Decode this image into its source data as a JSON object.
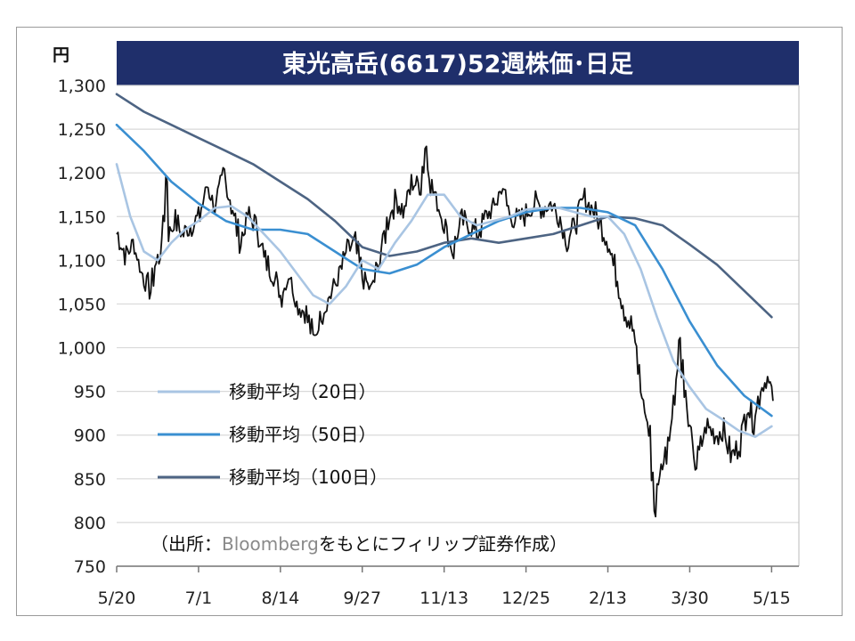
{
  "chart_data": {
    "type": "line",
    "title": "東光高岳(6617)52週株価･日足",
    "unit_label": "円",
    "ylim": [
      750,
      1300
    ],
    "yticks": [
      "1,300",
      "1,250",
      "1,200",
      "1,150",
      "1,100",
      "1,050",
      "1,000",
      "950",
      "900",
      "850",
      "800",
      "750"
    ],
    "ytick_values": [
      1300,
      1250,
      1200,
      1150,
      1100,
      1050,
      1000,
      950,
      900,
      850,
      800,
      750
    ],
    "xlim": [
      0,
      250
    ],
    "xticks": [
      "5/20",
      "7/1",
      "8/14",
      "9/27",
      "11/13",
      "12/25",
      "2/13",
      "3/30",
      "5/15"
    ],
    "xtick_positions": [
      0,
      30,
      60,
      90,
      120,
      150,
      180,
      210,
      240
    ],
    "grid": true,
    "legend_placement": "center-left",
    "source_note_prefix": "（出所：",
    "source_note_brand": "Bloomberg",
    "source_note_suffix": "をもとにフィリップ証券作成）",
    "colors": {
      "price": "#111111",
      "ma20": "#a9c5e3",
      "ma50": "#3a8fd1",
      "ma100": "#4d6483",
      "title_bg": "#1f2f6b",
      "grid": "#d9d9d9"
    },
    "price_anchors": [
      {
        "x": 0,
        "y": 1130
      },
      {
        "x": 3,
        "y": 1105
      },
      {
        "x": 6,
        "y": 1120
      },
      {
        "x": 9,
        "y": 1085
      },
      {
        "x": 12,
        "y": 1065
      },
      {
        "x": 14,
        "y": 1095
      },
      {
        "x": 16,
        "y": 1110
      },
      {
        "x": 18,
        "y": 1195
      },
      {
        "x": 19,
        "y": 1130
      },
      {
        "x": 21,
        "y": 1145
      },
      {
        "x": 24,
        "y": 1130
      },
      {
        "x": 27,
        "y": 1140
      },
      {
        "x": 30,
        "y": 1150
      },
      {
        "x": 33,
        "y": 1185
      },
      {
        "x": 36,
        "y": 1160
      },
      {
        "x": 39,
        "y": 1200
      },
      {
        "x": 42,
        "y": 1160
      },
      {
        "x": 45,
        "y": 1120
      },
      {
        "x": 48,
        "y": 1150
      },
      {
        "x": 51,
        "y": 1140
      },
      {
        "x": 54,
        "y": 1100
      },
      {
        "x": 57,
        "y": 1085
      },
      {
        "x": 60,
        "y": 1060
      },
      {
        "x": 63,
        "y": 1085
      },
      {
        "x": 66,
        "y": 1050
      },
      {
        "x": 69,
        "y": 1040
      },
      {
        "x": 72,
        "y": 1010
      },
      {
        "x": 75,
        "y": 1040
      },
      {
        "x": 78,
        "y": 1060
      },
      {
        "x": 81,
        "y": 1080
      },
      {
        "x": 84,
        "y": 1110
      },
      {
        "x": 87,
        "y": 1120
      },
      {
        "x": 90,
        "y": 1080
      },
      {
        "x": 93,
        "y": 1065
      },
      {
        "x": 96,
        "y": 1100
      },
      {
        "x": 99,
        "y": 1145
      },
      {
        "x": 102,
        "y": 1170
      },
      {
        "x": 105,
        "y": 1155
      },
      {
        "x": 108,
        "y": 1190
      },
      {
        "x": 111,
        "y": 1185
      },
      {
        "x": 113,
        "y": 1230
      },
      {
        "x": 115,
        "y": 1185
      },
      {
        "x": 118,
        "y": 1160
      },
      {
        "x": 120,
        "y": 1140
      },
      {
        "x": 123,
        "y": 1110
      },
      {
        "x": 126,
        "y": 1145
      },
      {
        "x": 129,
        "y": 1140
      },
      {
        "x": 132,
        "y": 1130
      },
      {
        "x": 135,
        "y": 1150
      },
      {
        "x": 138,
        "y": 1160
      },
      {
        "x": 141,
        "y": 1185
      },
      {
        "x": 144,
        "y": 1150
      },
      {
        "x": 147,
        "y": 1145
      },
      {
        "x": 150,
        "y": 1155
      },
      {
        "x": 153,
        "y": 1165
      },
      {
        "x": 156,
        "y": 1160
      },
      {
        "x": 159,
        "y": 1165
      },
      {
        "x": 162,
        "y": 1150
      },
      {
        "x": 165,
        "y": 1120
      },
      {
        "x": 168,
        "y": 1145
      },
      {
        "x": 171,
        "y": 1170
      },
      {
        "x": 174,
        "y": 1160
      },
      {
        "x": 177,
        "y": 1140
      },
      {
        "x": 180,
        "y": 1120
      },
      {
        "x": 183,
        "y": 1080
      },
      {
        "x": 186,
        "y": 1040
      },
      {
        "x": 189,
        "y": 1020
      },
      {
        "x": 192,
        "y": 950
      },
      {
        "x": 195,
        "y": 900
      },
      {
        "x": 197,
        "y": 815
      },
      {
        "x": 199,
        "y": 860
      },
      {
        "x": 201,
        "y": 880
      },
      {
        "x": 204,
        "y": 940
      },
      {
        "x": 206,
        "y": 1010
      },
      {
        "x": 208,
        "y": 945
      },
      {
        "x": 210,
        "y": 900
      },
      {
        "x": 212,
        "y": 865
      },
      {
        "x": 214,
        "y": 890
      },
      {
        "x": 216,
        "y": 910
      },
      {
        "x": 219,
        "y": 900
      },
      {
        "x": 222,
        "y": 905
      },
      {
        "x": 225,
        "y": 875
      },
      {
        "x": 228,
        "y": 890
      },
      {
        "x": 231,
        "y": 935
      },
      {
        "x": 233,
        "y": 915
      },
      {
        "x": 236,
        "y": 955
      },
      {
        "x": 238,
        "y": 965
      },
      {
        "x": 240,
        "y": 945
      }
    ],
    "series": [
      {
        "name": "移動平均（20日）",
        "key": "ma20",
        "x": [
          0,
          5,
          10,
          15,
          20,
          25,
          30,
          36,
          42,
          48,
          54,
          60,
          66,
          72,
          78,
          84,
          90,
          96,
          102,
          108,
          114,
          120,
          126,
          132,
          138,
          144,
          150,
          156,
          162,
          168,
          174,
          180,
          186,
          192,
          198,
          204,
          210,
          216,
          222,
          228,
          234,
          240
        ],
        "y": [
          1210,
          1150,
          1110,
          1100,
          1120,
          1135,
          1145,
          1160,
          1162,
          1150,
          1130,
          1110,
          1085,
          1060,
          1050,
          1070,
          1100,
          1090,
          1120,
          1145,
          1175,
          1175,
          1150,
          1140,
          1145,
          1150,
          1158,
          1160,
          1160,
          1155,
          1150,
          1150,
          1130,
          1090,
          1035,
          985,
          955,
          930,
          918,
          905,
          898,
          910
        ]
      },
      {
        "name": "移動平均（50日）",
        "key": "ma50",
        "x": [
          0,
          10,
          20,
          30,
          40,
          50,
          60,
          70,
          80,
          90,
          100,
          110,
          120,
          130,
          140,
          150,
          160,
          170,
          180,
          190,
          200,
          210,
          220,
          230,
          240
        ],
        "y": [
          1255,
          1225,
          1190,
          1165,
          1145,
          1135,
          1135,
          1130,
          1110,
          1090,
          1085,
          1095,
          1115,
          1130,
          1145,
          1155,
          1160,
          1160,
          1155,
          1140,
          1090,
          1030,
          980,
          945,
          922
        ]
      },
      {
        "name": "移動平均（100日）",
        "key": "ma100",
        "x": [
          0,
          10,
          20,
          30,
          40,
          50,
          60,
          70,
          80,
          90,
          100,
          110,
          120,
          130,
          140,
          150,
          160,
          170,
          180,
          190,
          200,
          210,
          220,
          230,
          240
        ],
        "y": [
          1290,
          1270,
          1255,
          1240,
          1225,
          1210,
          1190,
          1170,
          1145,
          1115,
          1105,
          1110,
          1120,
          1125,
          1120,
          1125,
          1130,
          1140,
          1150,
          1148,
          1140,
          1118,
          1095,
          1065,
          1035
        ]
      }
    ]
  }
}
